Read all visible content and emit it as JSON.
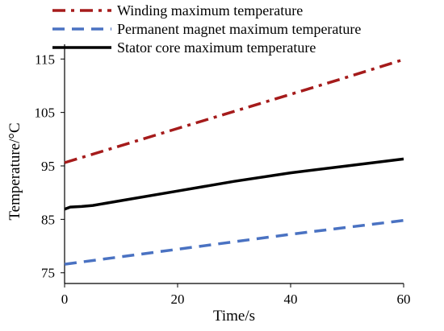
{
  "chart_data": {
    "type": "line",
    "xlabel": "Time/s",
    "ylabel": "Temperature/°C",
    "xlim": [
      0,
      60
    ],
    "ylim": [
      73,
      117
    ],
    "x_ticks": [
      0,
      20,
      40,
      60
    ],
    "y_ticks": [
      75,
      85,
      95,
      105,
      115
    ],
    "grid": false,
    "legend_position": "top-left",
    "series": [
      {
        "name": "Winding maximum temperature",
        "color": "#a51b1b",
        "dash": "dash-dot",
        "x": [
          0,
          10,
          20,
          30,
          40,
          50,
          60
        ],
        "y": [
          95.6,
          98.8,
          102.0,
          105.2,
          108.4,
          111.6,
          114.9
        ]
      },
      {
        "name": "Permanent magnet maximum temperature",
        "color": "#4a72c2",
        "dash": "dash",
        "x": [
          0,
          10,
          20,
          30,
          40,
          50,
          60
        ],
        "y": [
          76.6,
          78.0,
          79.4,
          80.8,
          82.2,
          83.5,
          84.8
        ]
      },
      {
        "name": "Stator core maximum temperature",
        "color": "#000000",
        "dash": "solid",
        "x": [
          0,
          1,
          3,
          5,
          10,
          20,
          30,
          40,
          50,
          60
        ],
        "y": [
          86.9,
          87.3,
          87.4,
          87.6,
          88.5,
          90.3,
          92.1,
          93.7,
          95.0,
          96.3
        ]
      }
    ]
  }
}
